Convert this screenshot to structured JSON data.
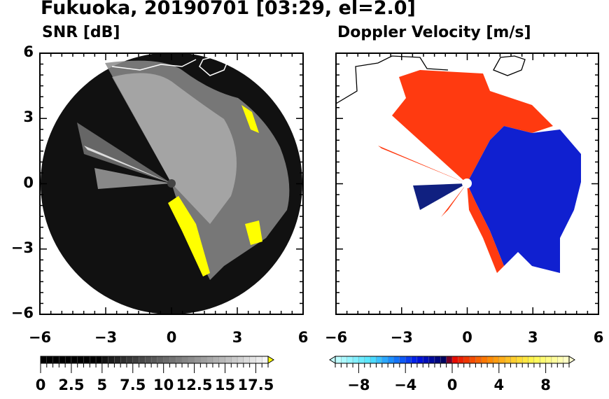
{
  "title": "Fukuoka, 20190701 [03:29, el=2.0]",
  "chart_data": [
    {
      "type": "heatmap",
      "title": "SNR [dB]",
      "xlim": [
        -6,
        6
      ],
      "ylim": [
        -6,
        6
      ],
      "xticks": [
        "-6",
        "-3",
        "0",
        "3",
        "6"
      ],
      "yticks": [
        "6",
        "3",
        "0",
        "-3",
        "-6"
      ],
      "colorbar": {
        "min": 0,
        "max": 18.5,
        "step": 0.5,
        "extend": "max",
        "ticks": [
          "0",
          "2.5",
          "5",
          "7.5",
          "10",
          "12.5",
          "15",
          "17.5"
        ],
        "over_color": "#ffff00"
      }
    },
    {
      "type": "heatmap",
      "title": "Doppler Velocity [m/s]",
      "xlim": [
        -6,
        6
      ],
      "ylim": [
        -6,
        6
      ],
      "xticks": [
        "-6",
        "-3",
        "0",
        "3",
        "6"
      ],
      "colorbar": {
        "min": -10,
        "max": 10,
        "step": 0.5,
        "extend": "both",
        "ticks": [
          "−8",
          "−4",
          "0",
          "4",
          "8"
        ]
      }
    }
  ]
}
